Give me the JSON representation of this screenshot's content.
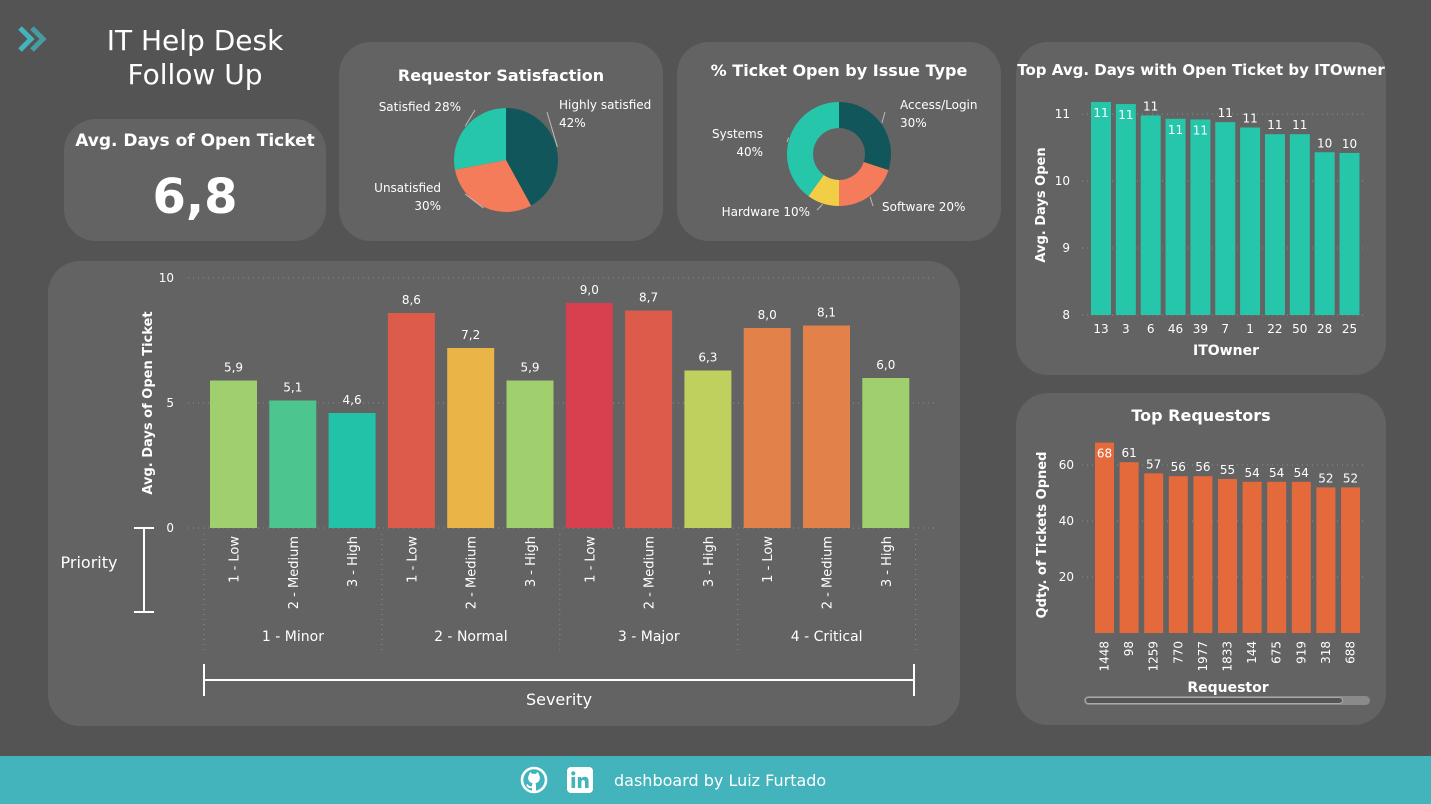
{
  "header": {
    "title_line1": "IT Help Desk",
    "title_line2": "Follow Up"
  },
  "kpi": {
    "label": "Avg. Days of Open Ticket",
    "value": "6,8"
  },
  "colors": {
    "background": "#545454",
    "card": "#636363",
    "teal": "#26c6aa",
    "orange": "#e56a3b",
    "footer": "#43b4bc"
  },
  "footer": {
    "text": "dashboard by Luiz Furtado",
    "icons": [
      "github-icon",
      "linkedin-icon"
    ]
  },
  "chart_data": [
    {
      "id": "satisfaction",
      "type": "pie",
      "title": "Requestor Satisfaction",
      "slices": [
        {
          "label": "Highly satisfied",
          "value": 42,
          "display": "42%",
          "color": "#11565b"
        },
        {
          "label": "Unsatisfied",
          "value": 30,
          "display": "30%",
          "color": "#f47c5a"
        },
        {
          "label": "Satisfied",
          "value": 28,
          "display": "28%",
          "color": "#26c6aa"
        }
      ]
    },
    {
      "id": "issue_type",
      "type": "pie",
      "title": "% Ticket Open by Issue Type",
      "donut": true,
      "slices": [
        {
          "label": "Access/Login",
          "value": 30,
          "display": "30%",
          "color": "#11565b"
        },
        {
          "label": "Software",
          "value": 20,
          "display": "20%",
          "color": "#f47c5a"
        },
        {
          "label": "Hardware",
          "value": 10,
          "display": "10%",
          "color": "#f2cd46"
        },
        {
          "label": "Systems",
          "value": 40,
          "display": "40%",
          "color": "#26c6aa"
        }
      ]
    },
    {
      "id": "severity",
      "type": "bar",
      "title": "",
      "ylabel": "Avg. Days of Open Ticket",
      "xlabel": "Severity",
      "group_label": "Priority",
      "ylim": [
        0,
        10
      ],
      "yticks": [
        "0",
        "5",
        "10"
      ],
      "grid": true,
      "groups": [
        {
          "name": "1 - Minor",
          "bars": [
            {
              "label": "1 - Low",
              "value": 5.9,
              "display": "5,9",
              "color": "#a0cf6e"
            },
            {
              "label": "2 - Medium",
              "value": 5.1,
              "display": "5,1",
              "color": "#4cc68e"
            },
            {
              "label": "3 - High",
              "value": 4.6,
              "display": "4,6",
              "color": "#22c2a8"
            }
          ]
        },
        {
          "name": "2 - Normal",
          "bars": [
            {
              "label": "1 - Low",
              "value": 8.6,
              "display": "8,6",
              "color": "#dc5b4a"
            },
            {
              "label": "2 - Medium",
              "value": 7.2,
              "display": "7,2",
              "color": "#ebb446"
            },
            {
              "label": "3 - High",
              "value": 5.9,
              "display": "5,9",
              "color": "#a0cf6e"
            }
          ]
        },
        {
          "name": "3 - Major",
          "bars": [
            {
              "label": "1 - Low",
              "value": 9.0,
              "display": "9,0",
              "color": "#d8404f"
            },
            {
              "label": "2 - Medium",
              "value": 8.7,
              "display": "8,7",
              "color": "#dc5b4a"
            },
            {
              "label": "3 - High",
              "value": 6.3,
              "display": "6,3",
              "color": "#bfd05f"
            }
          ]
        },
        {
          "name": "4 - Critical",
          "bars": [
            {
              "label": "1 - Low",
              "value": 8.0,
              "display": "8,0",
              "color": "#e2814a"
            },
            {
              "label": "2 - Medium",
              "value": 8.1,
              "display": "8,1",
              "color": "#e2814a"
            },
            {
              "label": "3 - High",
              "value": 6.0,
              "display": "6,0",
              "color": "#a0cf6e"
            }
          ]
        }
      ]
    },
    {
      "id": "itowner",
      "type": "bar",
      "title": "Top Avg. Days with Open Ticket by ITOwner",
      "xlabel": "ITOwner",
      "ylabel": "Avg. Days Open",
      "ylim": [
        8,
        11.3
      ],
      "yticks": [
        "8",
        "9",
        "10",
        "11"
      ],
      "grid": true,
      "color": "#26c6aa",
      "categories": [
        "13",
        "3",
        "6",
        "46",
        "39",
        "7",
        "1",
        "22",
        "50",
        "28",
        "25"
      ],
      "values": [
        11.18,
        11.15,
        10.98,
        10.93,
        10.92,
        10.88,
        10.8,
        10.7,
        10.7,
        10.43,
        10.42
      ],
      "labels": [
        "11",
        "11",
        "11",
        "11",
        "11",
        "11",
        "11",
        "11",
        "11",
        "10",
        "10"
      ]
    },
    {
      "id": "requestors",
      "type": "bar",
      "title": "Top Requestors",
      "xlabel": "Requestor",
      "ylabel": "Qdty. of Tickets Opned",
      "ylim": [
        0,
        70
      ],
      "yticks": [
        "20",
        "40",
        "60"
      ],
      "grid": true,
      "color": "#e56a3b",
      "categories": [
        "1448",
        "98",
        "1259",
        "770",
        "1977",
        "1833",
        "144",
        "675",
        "919",
        "318",
        "688"
      ],
      "values": [
        68,
        61,
        57,
        56,
        56,
        55,
        54,
        54,
        54,
        52,
        52
      ],
      "labels": [
        "68",
        "61",
        "57",
        "56",
        "56",
        "55",
        "54",
        "54",
        "54",
        "52",
        "52"
      ]
    }
  ]
}
